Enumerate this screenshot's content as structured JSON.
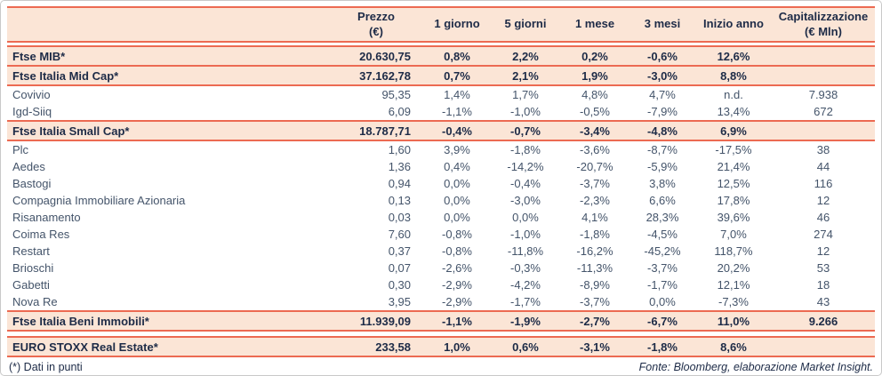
{
  "colors": {
    "accent": "#EC6A52",
    "peach": "#FBE5D6",
    "navy": "#1D2B47",
    "bodytext": "#44546A",
    "frameborder": "#C9C9C9"
  },
  "footer": {
    "footnote": "(*) Dati in punti",
    "source": "Fonte: Bloomberg, elaborazione Market Insight."
  },
  "table": {
    "column_keys": [
      "prezzo",
      "1-giorno",
      "5-giorni",
      "1-mese",
      "3-mesi",
      "inizio-anno",
      "capitalizzazione"
    ],
    "columns": [
      {
        "label": "",
        "key": "name"
      },
      {
        "label": "Prezzo",
        "sub": "(€)",
        "key": "prezzo"
      },
      {
        "label": "1 giorno",
        "key": "1-giorno"
      },
      {
        "label": "5 giorni",
        "key": "5-giorni"
      },
      {
        "label": "1 mese",
        "key": "1-mese"
      },
      {
        "label": "3 mesi",
        "key": "3-mesi"
      },
      {
        "label": "Inizio anno",
        "key": "inizio-anno"
      },
      {
        "label": "Capitalizzazione",
        "sub": "(€ Mln)",
        "key": "capitalizzazione"
      }
    ],
    "rows": [
      {
        "name": "Ftse MIB*",
        "type": "index",
        "spacer_before": true,
        "values": [
          "20.630,75",
          "0,8%",
          "2,2%",
          "0,2%",
          "-0,6%",
          "12,6%",
          ""
        ]
      },
      {
        "name": "Ftse Italia Mid Cap*",
        "type": "index",
        "values": [
          "37.162,78",
          "0,7%",
          "2,1%",
          "1,9%",
          "-3,0%",
          "8,8%",
          ""
        ]
      },
      {
        "name": "Covivio",
        "type": "stock",
        "values": [
          "95,35",
          "1,4%",
          "1,7%",
          "4,8%",
          "4,7%",
          "n.d.",
          "7.938"
        ]
      },
      {
        "name": "Igd-Siiq",
        "type": "stock",
        "values": [
          "6,09",
          "-1,1%",
          "-1,0%",
          "-0,5%",
          "-7,9%",
          "13,4%",
          "672"
        ]
      },
      {
        "name": "Ftse Italia Small Cap*",
        "type": "index",
        "values": [
          "18.787,71",
          "-0,4%",
          "-0,7%",
          "-3,4%",
          "-4,8%",
          "6,9%",
          ""
        ]
      },
      {
        "name": "Plc",
        "type": "stock",
        "values": [
          "1,60",
          "3,9%",
          "-1,8%",
          "-3,6%",
          "-8,7%",
          "-17,5%",
          "38"
        ]
      },
      {
        "name": "Aedes",
        "type": "stock",
        "values": [
          "1,36",
          "0,4%",
          "-14,2%",
          "-20,7%",
          "-5,9%",
          "21,4%",
          "44"
        ]
      },
      {
        "name": "Bastogi",
        "type": "stock",
        "values": [
          "0,94",
          "0,0%",
          "-0,4%",
          "-3,7%",
          "3,8%",
          "12,5%",
          "116"
        ]
      },
      {
        "name": "Compagnia Immobiliare Azionaria",
        "type": "stock",
        "values": [
          "0,13",
          "0,0%",
          "-3,0%",
          "-2,3%",
          "6,6%",
          "17,8%",
          "12"
        ]
      },
      {
        "name": "Risanamento",
        "type": "stock",
        "values": [
          "0,03",
          "0,0%",
          "0,0%",
          "4,1%",
          "28,3%",
          "39,6%",
          "46"
        ]
      },
      {
        "name": "Coima Res",
        "type": "stock",
        "values": [
          "7,60",
          "-0,8%",
          "-1,0%",
          "-1,8%",
          "-4,5%",
          "7,0%",
          "274"
        ]
      },
      {
        "name": "Restart",
        "type": "stock",
        "values": [
          "0,37",
          "-0,8%",
          "-11,8%",
          "-16,2%",
          "-45,2%",
          "118,7%",
          "12"
        ]
      },
      {
        "name": "Brioschi",
        "type": "stock",
        "values": [
          "0,07",
          "-2,6%",
          "-0,3%",
          "-11,3%",
          "-3,7%",
          "20,2%",
          "53"
        ]
      },
      {
        "name": "Gabetti",
        "type": "stock",
        "values": [
          "0,30",
          "-2,9%",
          "-4,2%",
          "-8,9%",
          "-1,7%",
          "12,1%",
          "18"
        ]
      },
      {
        "name": "Nova Re",
        "type": "stock",
        "values": [
          "3,95",
          "-2,9%",
          "-1,7%",
          "-3,7%",
          "0,0%",
          "-7,3%",
          "43"
        ]
      },
      {
        "name": "Ftse Italia Beni Immobili*",
        "type": "index",
        "values": [
          "11.939,09",
          "-1,1%",
          "-1,9%",
          "-2,7%",
          "-6,7%",
          "11,0%",
          "9.266"
        ]
      },
      {
        "name": "EURO STOXX Real Estate*",
        "type": "index",
        "spacer_before": true,
        "tall_spacer": true,
        "values": [
          "233,58",
          "1,0%",
          "0,6%",
          "-3,1%",
          "-1,8%",
          "8,6%",
          ""
        ]
      }
    ]
  }
}
